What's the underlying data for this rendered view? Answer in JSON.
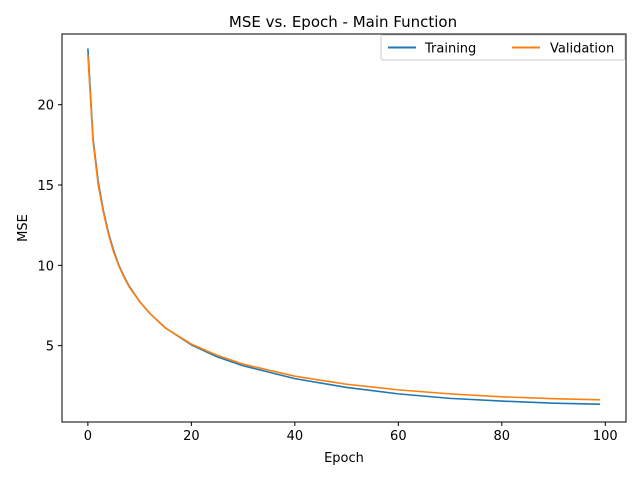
{
  "chart_data": {
    "type": "line",
    "title": "MSE vs. Epoch - Main Function",
    "xlabel": "Epoch",
    "ylabel": "MSE",
    "xlim": [
      -5,
      104
    ],
    "ylim": [
      0.25,
      24.4
    ],
    "xticks": [
      0,
      20,
      40,
      60,
      80,
      100
    ],
    "yticks": [
      5,
      10,
      15,
      20
    ],
    "grid": false,
    "legend_position": "top-right",
    "series": [
      {
        "name": "Training",
        "color": "#1f77b4",
        "x": [
          0,
          1,
          2,
          3,
          4,
          5,
          6,
          7,
          8,
          10,
          12,
          15,
          20,
          25,
          30,
          40,
          50,
          60,
          70,
          80,
          90,
          99
        ],
        "y": [
          23.5,
          17.9,
          15.2,
          13.4,
          12.0,
          10.9,
          10.0,
          9.3,
          8.7,
          7.75,
          7.0,
          6.1,
          5.05,
          4.3,
          3.75,
          2.95,
          2.4,
          2.0,
          1.72,
          1.55,
          1.42,
          1.36
        ]
      },
      {
        "name": "Validation",
        "color": "#ff7f0e",
        "x": [
          0,
          1,
          2,
          3,
          4,
          5,
          6,
          7,
          8,
          10,
          12,
          15,
          20,
          25,
          30,
          40,
          50,
          60,
          70,
          80,
          90,
          99
        ],
        "y": [
          23.1,
          17.7,
          15.0,
          13.3,
          11.9,
          10.8,
          9.95,
          9.25,
          8.65,
          7.75,
          7.0,
          6.1,
          5.1,
          4.4,
          3.85,
          3.1,
          2.6,
          2.25,
          2.0,
          1.82,
          1.7,
          1.63
        ]
      }
    ]
  }
}
